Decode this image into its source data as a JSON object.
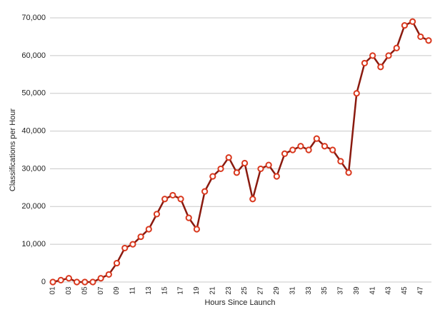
{
  "chart_data": {
    "type": "line",
    "x_label": "Hours Since Launch",
    "y_label": "Classifications per Hour",
    "categories": [
      "01",
      null,
      "03",
      null,
      "05",
      null,
      "07",
      null,
      "09",
      null,
      "11",
      null,
      "13",
      null,
      "15",
      null,
      "17",
      null,
      "19",
      null,
      "21",
      null,
      "23",
      null,
      "25",
      null,
      "27",
      null,
      "29",
      null,
      "31",
      null,
      "33",
      null,
      "35",
      null,
      "37",
      null,
      "39",
      null,
      "41",
      null,
      "43",
      null,
      "45",
      null,
      "47",
      null
    ],
    "values": [
      0,
      500,
      1000,
      0,
      0,
      0,
      1000,
      2000,
      5000,
      9000,
      10000,
      12000,
      14000,
      18000,
      22000,
      23000,
      22000,
      17000,
      14000,
      24000,
      28000,
      30000,
      33000,
      29000,
      31500,
      22000,
      30000,
      31000,
      28000,
      34000,
      35000,
      36000,
      35000,
      38000,
      36000,
      35000,
      32000,
      29000,
      50000,
      58000,
      60000,
      57000,
      60000,
      62000,
      68000,
      69000,
      65000,
      64000
    ],
    "color": "#8a1a0f",
    "marker_color": "#d9381e",
    "ylim": [
      0,
      70000
    ],
    "yticks": [
      0,
      {
        "value": 10000,
        "label": "10,000"
      },
      {
        "value": 20000,
        "label": "20,000"
      },
      {
        "value": 30000,
        "label": "30,000"
      },
      {
        "value": 40000,
        "label": "40,000"
      },
      {
        "value": 50000,
        "label": "50,000"
      },
      {
        "value": 60000,
        "label": "60,000"
      },
      {
        "value": 70000,
        "label": "70,000"
      }
    ],
    "grid": true
  }
}
